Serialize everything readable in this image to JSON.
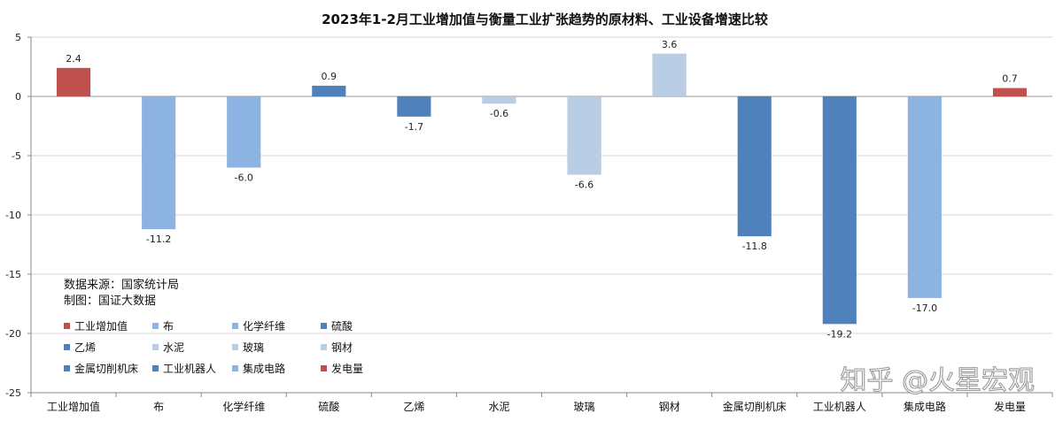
{
  "chart_data": {
    "type": "bar",
    "title": "2023年1-2月工业增加值与衡量工业扩张趋势的原材料、工业设备增速比较",
    "categories": [
      "工业增加值",
      "布",
      "化学纤维",
      "硫酸",
      "乙烯",
      "水泥",
      "玻璃",
      "钢材",
      "金属切削机床",
      "工业机器人",
      "集成电路",
      "发电量"
    ],
    "values": [
      2.4,
      -11.2,
      -6.0,
      0.9,
      -1.7,
      -0.6,
      -6.6,
      3.6,
      -11.8,
      -19.2,
      -17.0,
      0.7
    ],
    "value_labels": [
      "2.4",
      "-11.2",
      "-6.0",
      "0.9",
      "-1.7",
      "-0.6",
      "-6.6",
      "3.6",
      "-11.8",
      "-19.2",
      "-17.0",
      "0.7"
    ],
    "colors": [
      "#c0504d",
      "#8db3e2",
      "#8db3e2",
      "#4f81bd",
      "#4f81bd",
      "#b9cde5",
      "#b9cde5",
      "#b9cde5",
      "#4f81bd",
      "#4f81bd",
      "#8db3e2",
      "#c0504d"
    ],
    "ylim": [
      -25,
      5
    ],
    "yticks": [
      5,
      0,
      -5,
      -10,
      -15,
      -20,
      -25
    ],
    "grid": true,
    "legend_position": "bottom-left, inside plot",
    "xlabel": "",
    "ylabel": ""
  },
  "annotations": {
    "source": "数据来源：国家统计局",
    "made_by": "制图：国证大数据"
  },
  "watermark": "知乎 @火星宏观"
}
